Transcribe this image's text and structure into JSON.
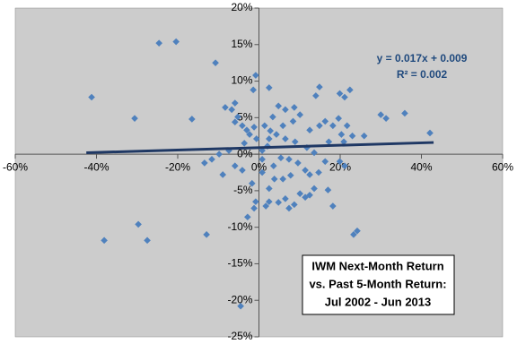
{
  "chart_data": {
    "type": "scatter",
    "xlim": [
      -60,
      60
    ],
    "ylim": [
      -25,
      20
    ],
    "xticks": [
      {
        "value": -60,
        "label": "-60%"
      },
      {
        "value": -40,
        "label": "-40%"
      },
      {
        "value": -20,
        "label": "-20%"
      },
      {
        "value": 0,
        "label": "0%"
      },
      {
        "value": 20,
        "label": "20%"
      },
      {
        "value": 40,
        "label": "40%"
      },
      {
        "value": 60,
        "label": "60%"
      }
    ],
    "yticks": [
      {
        "value": -25,
        "label": "-25%"
      },
      {
        "value": -20,
        "label": "-20%"
      },
      {
        "value": -15,
        "label": "-15%"
      },
      {
        "value": -10,
        "label": "-10%"
      },
      {
        "value": -5,
        "label": "-5%"
      },
      {
        "value": 0,
        "label": "0%"
      },
      {
        "value": 5,
        "label": "5%"
      },
      {
        "value": 10,
        "label": "10%"
      },
      {
        "value": 15,
        "label": "15%"
      },
      {
        "value": 20,
        "label": "20%"
      }
    ],
    "color": "#4f81bd",
    "background": "#cccccc",
    "x": [
      -41.2,
      -24.6,
      -20.4,
      -10.7,
      -30.6,
      -16.5,
      -38.1,
      -29.7,
      -27.5,
      -12.9,
      -4.5,
      -0.8,
      -1.4,
      2.5,
      14.9,
      22.4,
      21.1,
      19.9,
      14.0,
      30.0,
      31.3,
      35.9,
      42.1,
      25.9,
      24.2,
      23.3,
      -5.9,
      -6.7,
      -8.3,
      -5.2,
      -5.9,
      -4.1,
      -3.0,
      -2.3,
      -1.2,
      -0.6,
      -3.6,
      -7.4,
      -9.8,
      -11.6,
      -13.4,
      -8.9,
      -5.9,
      -4.1,
      -1.7,
      -0.8,
      -1.2,
      -2.8,
      1.7,
      2.5,
      4.8,
      6.5,
      7.4,
      8.7,
      10.1,
      11.4,
      12.5,
      13.6,
      17.0,
      18.2,
      2.5,
      3.8,
      5.9,
      7.8,
      3.6,
      5.4,
      7.4,
      9.6,
      11.4,
      12.5,
      14.7,
      16.3,
      19.9,
      21.1,
      13.6,
      11.8,
      8.9,
      6.5,
      4.3,
      2.5,
      1.4,
      3.4,
      4.8,
      6.5,
      8.7,
      10.1,
      8.4,
      5.9,
      12.5,
      14.9,
      16.3,
      18.2,
      19.6,
      21.7,
      20.3,
      23.0,
      20.9,
      17.2,
      2.8,
      2.1,
      0.8,
      0.8,
      0.8
    ],
    "values": [
      7.8,
      15.2,
      15.4,
      12.5,
      4.9,
      4.8,
      -11.8,
      -9.6,
      -11.8,
      -11.0,
      -20.8,
      10.8,
      8.8,
      9.1,
      9.2,
      8.8,
      7.8,
      8.3,
      8.0,
      5.4,
      4.9,
      5.6,
      2.9,
      2.5,
      -10.5,
      -11.0,
      7.0,
      6.1,
      6.4,
      5.1,
      4.4,
      3.9,
      3.3,
      2.7,
      3.7,
      2.1,
      1.5,
      0.5,
      0,
      -0.7,
      -1.2,
      -2.8,
      -1.6,
      -2.2,
      -4.0,
      -6.5,
      -7.4,
      -8.6,
      -7.1,
      -6.5,
      -6.6,
      -6.1,
      -7.4,
      -6.9,
      -5.4,
      -5.9,
      -5.6,
      -4.7,
      -4.9,
      -7.1,
      -4.7,
      -3.4,
      -3.4,
      -2.9,
      -1.6,
      -0.5,
      -0.7,
      -1.2,
      -2.2,
      -2.8,
      -2.5,
      -1.0,
      -1.0,
      -1.6,
      0.2,
      0.9,
      1.7,
      2.1,
      2.7,
      2.1,
      3.9,
      5.1,
      6.6,
      6.1,
      6.4,
      5.4,
      4.5,
      3.9,
      3.3,
      3.9,
      4.5,
      3.9,
      4.9,
      3.9,
      2.7,
      2.5,
      1.7,
      1.7,
      3.2,
      1.1,
      0.5,
      -0.7,
      -2.5
    ],
    "trendline": {
      "x": [
        -42.5,
        43
      ],
      "y": [
        0.2,
        1.6
      ],
      "color": "#1f3864"
    },
    "annotations": [
      "y = 0.017x + 0.009",
      "R² = 0.002"
    ],
    "textbox": [
      "IWM Next-Month Return",
      "vs. Past 5-Month Return:",
      "Jul 2002 - Jun 2013"
    ]
  }
}
